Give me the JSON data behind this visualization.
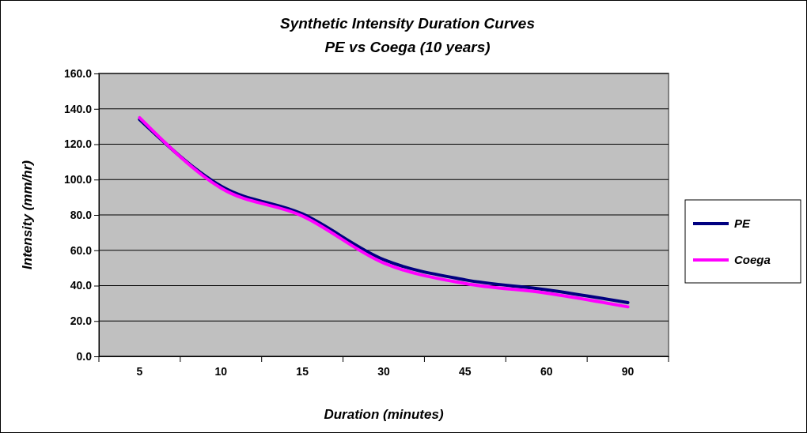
{
  "chart_data": {
    "type": "line",
    "title": "Synthetic Intensity Duration Curves",
    "subtitle": "PE vs Coega (10 years)",
    "xlabel": "Duration (minutes)",
    "ylabel": "Intensity (mm/hr)",
    "categories": [
      "5",
      "10",
      "15",
      "30",
      "45",
      "60",
      "90"
    ],
    "series": [
      {
        "name": "PE",
        "color": "#000080",
        "values": [
          134,
          96.3,
          80.6,
          54.7,
          43.3,
          37.7,
          30.4
        ]
      },
      {
        "name": "Coega",
        "color": "#ff00ff",
        "values": [
          135,
          95.2,
          79.4,
          52.8,
          41.2,
          35.8,
          28.0
        ]
      }
    ],
    "ylim": [
      0,
      160
    ],
    "yticks": [
      {
        "value": 0,
        "label": "0.0"
      },
      {
        "value": 20,
        "label": "20.0"
      },
      {
        "value": 40,
        "label": "40.0"
      },
      {
        "value": 60,
        "label": "60.0"
      },
      {
        "value": 80,
        "label": "80.0"
      },
      {
        "value": 100,
        "label": "100.0"
      },
      {
        "value": 120,
        "label": "120.0"
      },
      {
        "value": 140,
        "label": "140.0"
      },
      {
        "value": 160,
        "label": "160.0"
      }
    ],
    "grid": "y",
    "legend": "right",
    "marker": "none",
    "line_style": "solid"
  }
}
